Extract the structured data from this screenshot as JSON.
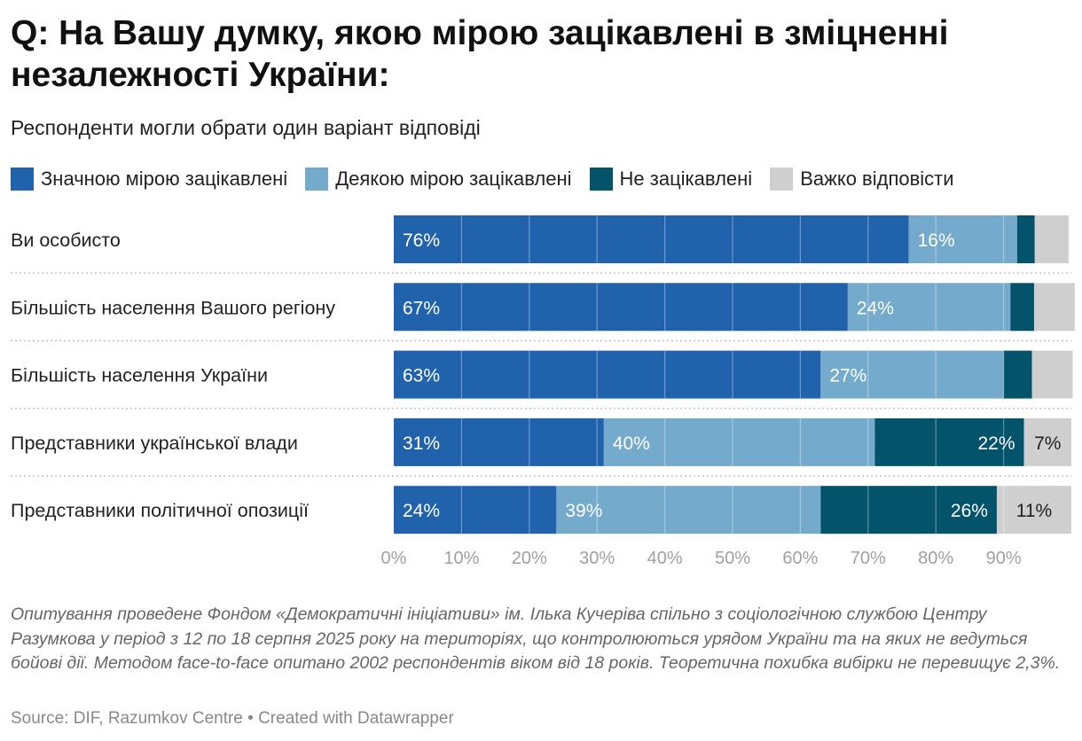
{
  "header": {
    "title": "Q: На Вашу думку, якою мірою зацікавлені в зміцненні незалежності України:",
    "subtitle": "Респонденти могли обрати один варіант відповіді"
  },
  "notes": "Опитування проведене Фондом «Демократичні ініціативи» ім. Ілька Кучеріва спільно з соціологічною службою Центру Разумкова у період з 12 по 18 серпня 2025 року на територіях, що контролюються урядом України та на яких не ведуться бойові дії. Методом face-to-face опитано 2002 респондентів віком від 18 років. Теоретична похибка вибірки не перевищує 2,3%.",
  "source": "Source: DIF, Razumkov Centre • Created with Datawrapper",
  "chart_data": {
    "type": "bar",
    "orientation": "horizontal",
    "stacked": true,
    "title": "Q: На Вашу думку, якою мірою зацікавлені в зміцненні незалежності України:",
    "subtitle": "Респонденти могли обрати один варіант відповіді",
    "legend_position": "top",
    "grid": true,
    "xlim": [
      0,
      100
    ],
    "x_ticks": [
      "0%",
      "10%",
      "20%",
      "30%",
      "40%",
      "50%",
      "60%",
      "70%",
      "80%",
      "90%"
    ],
    "x_tick_values": [
      0,
      10,
      20,
      30,
      40,
      50,
      60,
      70,
      80,
      90
    ],
    "categories": [
      "Ви особисто",
      "Більшість населення Вашого регіону",
      "Більшість населення України",
      "Представники української влади",
      "Представники політичної опозиції"
    ],
    "series": [
      {
        "name": "Значною мірою зацікавлені",
        "color": "#2162ad",
        "values": [
          76,
          67,
          63,
          31,
          24
        ],
        "labels": [
          "76%",
          "67%",
          "63%",
          "31%",
          "24%"
        ]
      },
      {
        "name": "Деякою мірою зацікавлені",
        "color": "#74aacb",
        "values": [
          16,
          24,
          27,
          40,
          39
        ],
        "labels": [
          "16%",
          "24%",
          "27%",
          "40%",
          "39%"
        ]
      },
      {
        "name": "Не зацікавлені",
        "color": "#03536b",
        "values": [
          2.6,
          3.5,
          4.2,
          22,
          26
        ],
        "labels": [
          "",
          "",
          "",
          "22%",
          "26%"
        ]
      },
      {
        "name": "Важко відповісти",
        "color": "#cfcfcf",
        "values": [
          5,
          6,
          6,
          7,
          11
        ],
        "labels": [
          "",
          "",
          "",
          "7%",
          "11%"
        ]
      }
    ]
  }
}
